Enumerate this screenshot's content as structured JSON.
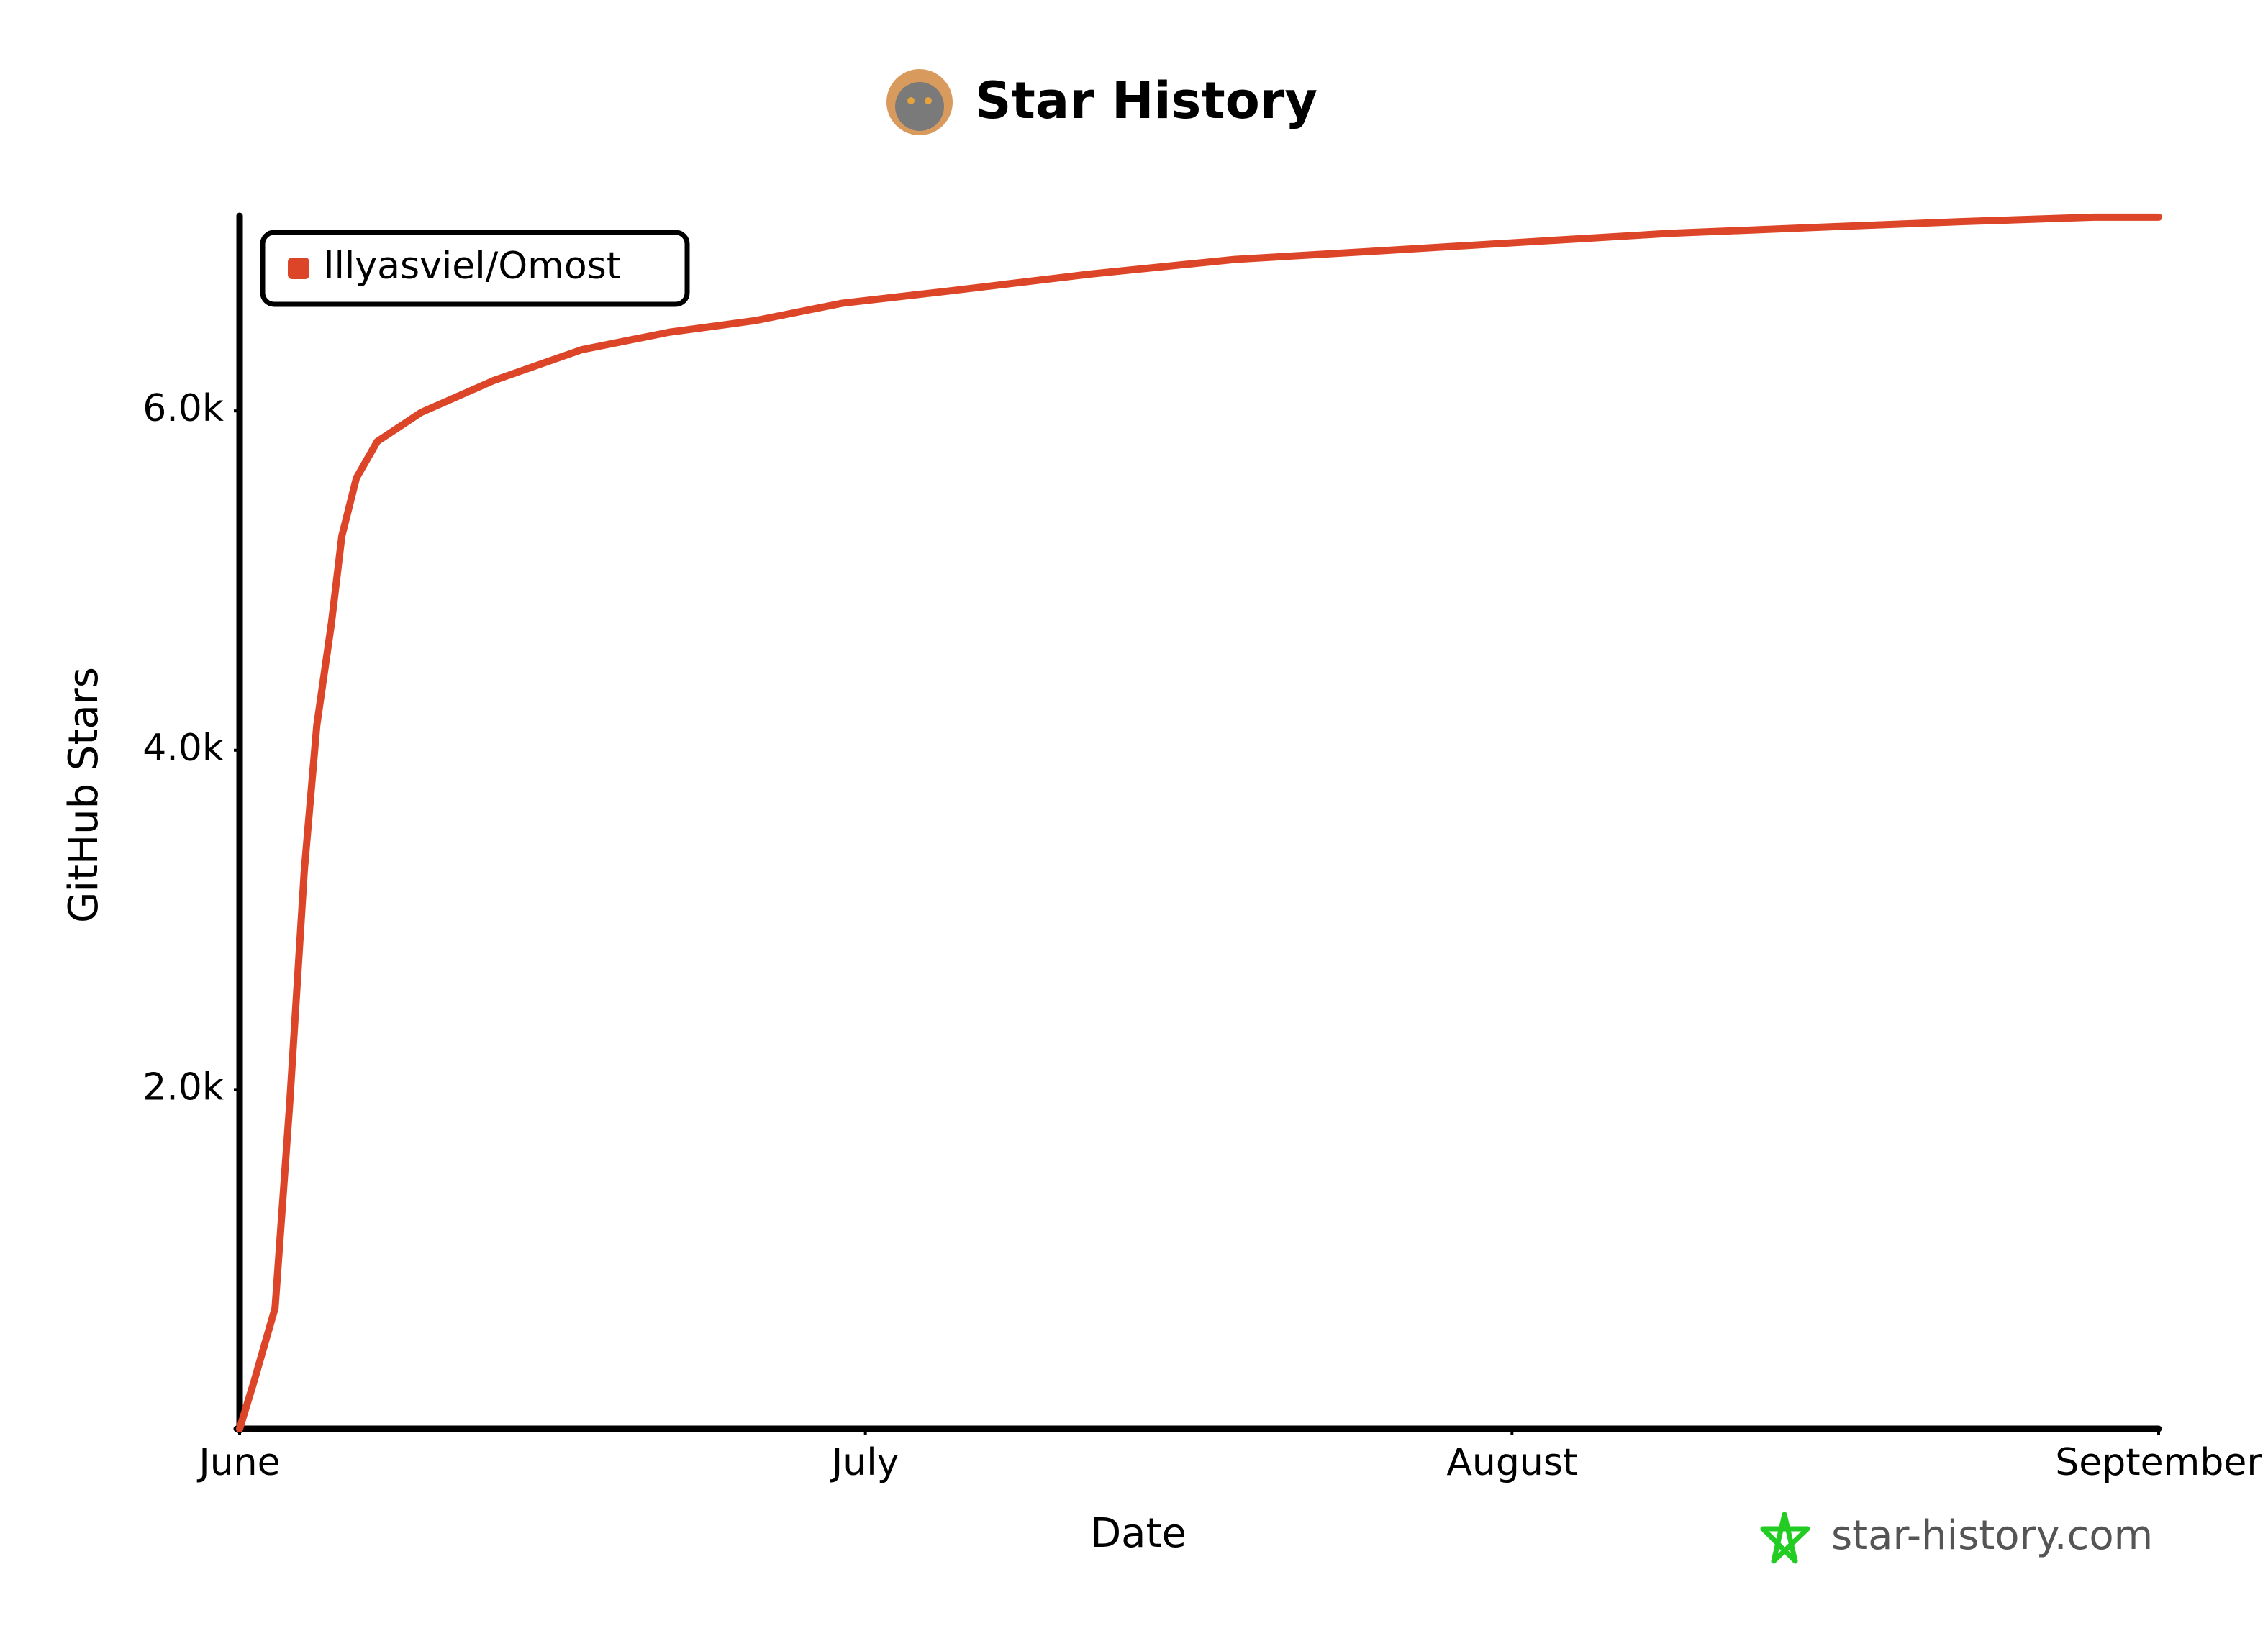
{
  "chart_data": {
    "type": "line",
    "title": "Star History",
    "xlabel": "Date",
    "ylabel": "GitHub Stars",
    "x": [
      0,
      0.7,
      1.7,
      2.4,
      3.1,
      3.7,
      4.4,
      4.9,
      5.6,
      6.6,
      8.7,
      12.2,
      16.4,
      20.6,
      24.7,
      28.9,
      33.8,
      40.8,
      47.7,
      54.7,
      61.7,
      68.6,
      75.6,
      82.6,
      88.9,
      92
    ],
    "series": [
      {
        "name": "lllyasviel/Omost",
        "color": "#dd4528",
        "values": [
          0,
          283,
          712,
          1914,
          3288,
          4146,
          4747,
          5262,
          5605,
          5820,
          5991,
          6180,
          6361,
          6464,
          6532,
          6635,
          6704,
          6807,
          6893,
          6944,
          6996,
          7047,
          7082,
          7116,
          7142,
          7142
        ]
      }
    ],
    "xlim": [
      0,
      92
    ],
    "xticks": [
      {
        "value": 0,
        "label": "June"
      },
      {
        "value": 30,
        "label": "July"
      },
      {
        "value": 61,
        "label": "August"
      },
      {
        "value": 92,
        "label": "September"
      }
    ],
    "ylim": [
      0,
      7150
    ],
    "yticks": [
      {
        "value": 2000,
        "label": "2.0k"
      },
      {
        "value": 4000,
        "label": "4.0k"
      },
      {
        "value": 6000,
        "label": "6.0k"
      }
    ],
    "grid": false,
    "legend": "upper left",
    "watermark": "star-history.com"
  }
}
